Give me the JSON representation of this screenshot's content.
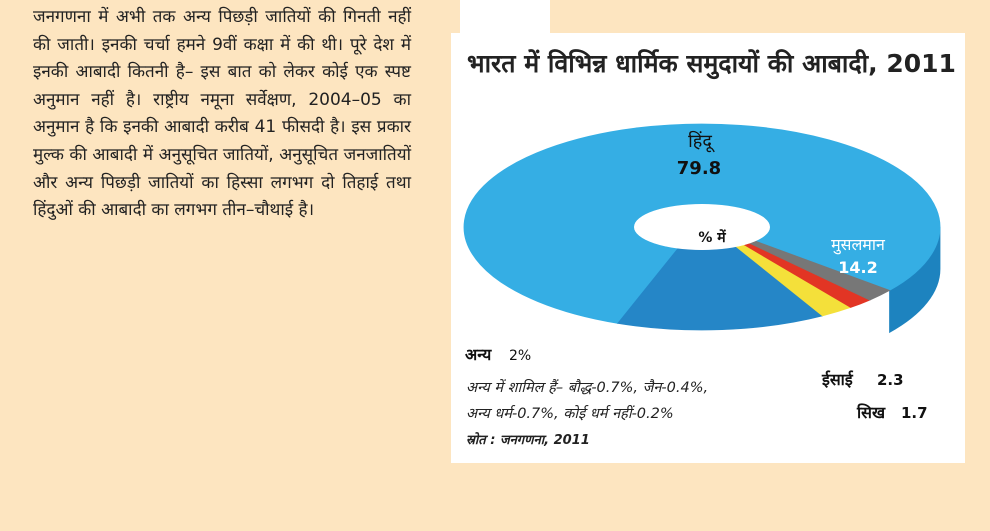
{
  "text_block": {
    "paragraph": "जनगणना में अभी तक अन्य पिछड़ी जातियों की गिनती नहीं की जाती। इनकी चर्चा हमने 9वीं कक्षा में की थी। पूरे देश में इनकी आबादी कितनी है– इस बात को लेकर कोई एक स्पष्ट अनुमान नहीं है। राष्ट्रीय नमूना सर्वेक्षण, 2004–05 का अनुमान है कि इनकी आबादी करीब 41 फीसदी है। इस प्रकार मुल्क की आबादी में अनुसूचित जातियों, अनुसूचित जनजातियों और अन्य पिछड़ी जातियों का हिस्सा लगभग दो तिहाई तथा हिंदुओं की आबादी का लगभग तीन–चौथाई है।"
  },
  "chart_data": {
    "type": "pie",
    "title": "भारत में विभिन्न धार्मिक समुदायों की आबादी, 2011",
    "center_label": "% में",
    "unit": "%",
    "slices": [
      {
        "name": "हिंदू",
        "value": 79.8,
        "value_label": "79.8",
        "color": "#35aee4",
        "side": "#1d83bf"
      },
      {
        "name": "मुसलमान",
        "value": 14.2,
        "value_label": "14.2",
        "color": "#2586c7",
        "side": "#135a94"
      },
      {
        "name": "ईसाई",
        "value": 2.3,
        "value_label": "2.3",
        "color": "#f4e03a",
        "side": "#c9a713"
      },
      {
        "name": "सिख",
        "value": 1.7,
        "value_label": "1.7",
        "color": "#e23524",
        "side": "#a81d12"
      },
      {
        "name": "अन्य",
        "value": 2.0,
        "value_label": "2%",
        "color": "#777777",
        "side": "#2e2e2e"
      }
    ],
    "others_note_line1": "अन्य में शामिल हैं–  बौद्ध-0.7%, जैन-0.4%,",
    "others_note_line2": "अन्य धर्म-0.7%,  कोई धर्म नहीं-0.2%",
    "source": "स्रोत : जनगणना, 2011"
  },
  "colors": {
    "page_background": "#fde5c0",
    "panel_background": "#ffffff",
    "text": "#222222"
  }
}
